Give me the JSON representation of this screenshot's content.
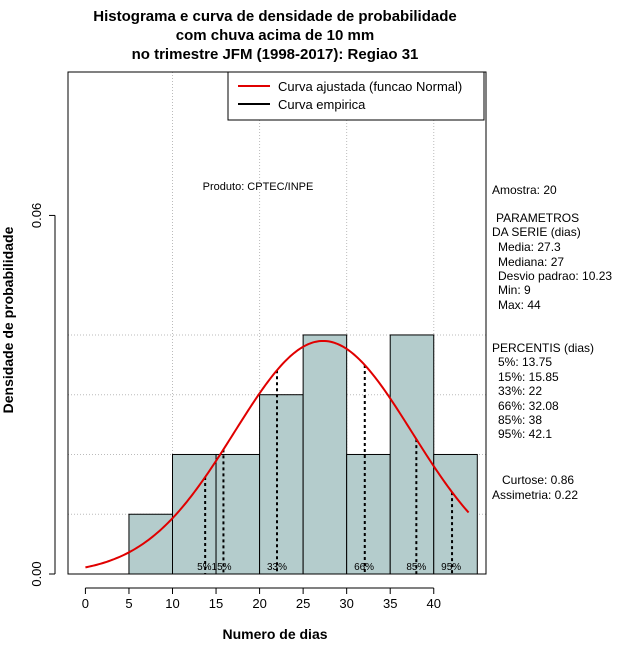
{
  "chart_data": {
    "type": "histogram",
    "title": [
      "Histograma e curva de densidade de probabilidade",
      "com chuva acima de 10 mm",
      "no trimestre JFM (1998-2017): Regiao 31"
    ],
    "xlabel": "Numero de dias",
    "ylabel": "Densidade de probabilidade",
    "xlim": [
      -2,
      46
    ],
    "ylim": [
      0,
      0.084
    ],
    "x_ticks": [
      0,
      5,
      10,
      15,
      20,
      25,
      30,
      35,
      40
    ],
    "x_tick_labels": [
      "0",
      "5",
      "10",
      "15",
      "20",
      "25",
      "30",
      "35",
      "40"
    ],
    "y_ticks": [
      0.0,
      0.06
    ],
    "y_tick_labels": [
      "0.00",
      "0.06"
    ],
    "grid": true,
    "bins": [
      {
        "from": 5,
        "to": 10,
        "density": 0.01
      },
      {
        "from": 10,
        "to": 15,
        "density": 0.02
      },
      {
        "from": 15,
        "to": 20,
        "density": 0.02
      },
      {
        "from": 20,
        "to": 25,
        "density": 0.03
      },
      {
        "from": 25,
        "to": 30,
        "density": 0.04
      },
      {
        "from": 30,
        "to": 35,
        "density": 0.02
      },
      {
        "from": 35,
        "to": 40,
        "density": 0.04
      },
      {
        "from": 40,
        "to": 45,
        "density": 0.02
      }
    ],
    "bar_color": "#b4cccc",
    "normal_curve": {
      "mean": 27.3,
      "sd": 10.23,
      "x_from": 0,
      "x_to": 44,
      "color": "#e00000"
    },
    "percentiles": [
      {
        "label": "5%",
        "x": 13.75
      },
      {
        "label": "15%",
        "x": 15.85
      },
      {
        "label": "33%",
        "x": 22
      },
      {
        "label": "66%",
        "x": 32.08
      },
      {
        "label": "85%",
        "x": 38
      },
      {
        "label": "95%",
        "x": 42.1
      }
    ],
    "percentile_label_text": [
      "5%15%",
      "33%",
      "66%",
      "85%",
      "95%"
    ],
    "legend": [
      {
        "label": "Curva ajustada (funcao Normal)",
        "color": "#e00000"
      },
      {
        "label": "Curva empirica",
        "color": "#000000"
      }
    ],
    "legend_position": "top-right",
    "annotation": "Produto: CPTEC/INPE"
  },
  "stats": {
    "amostra": "Amostra: 20",
    "param_title1": "PARAMETROS",
    "param_title2": "DA SERIE (dias)",
    "media": "Media: 27.3",
    "mediana": "Mediana: 27",
    "desvio": "Desvio padrao: 10.23",
    "min": "Min: 9",
    "max": "Max: 44",
    "perc_title": "PERCENTIS (dias)",
    "p5": "5%: 13.75",
    "p15": "15%: 15.85",
    "p33": "33%: 22",
    "p66": "66%: 32.08",
    "p85": "85%: 38",
    "p95": "95%: 42.1",
    "curtose": "Curtose: 0.86",
    "assimetria": "Assimetria: 0.22"
  }
}
